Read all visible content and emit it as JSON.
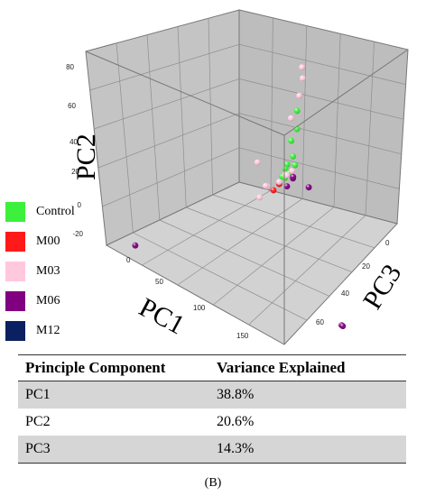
{
  "chart_data": {
    "type": "scatter",
    "title": "",
    "xlabel": "PC1",
    "ylabel": "PC2",
    "zlabel": "PC3",
    "pc1_ticks": [
      "0",
      "50",
      "100",
      "150"
    ],
    "pc2_ticks": [
      "80",
      "60",
      "40",
      "20",
      "0",
      "-20"
    ],
    "pc3_ticks": [
      "0",
      "20",
      "40",
      "60"
    ],
    "pc1_range": [
      0,
      180
    ],
    "pc2_range": [
      -20,
      80
    ],
    "pc3_range": [
      0,
      70
    ],
    "legend_position": "left",
    "series": [
      {
        "name": "Control",
        "color": "#3cf03c",
        "points": [
          [
            120,
            70,
            38
          ],
          [
            116,
            58,
            40
          ],
          [
            112,
            42,
            40
          ],
          [
            110,
            38,
            38
          ],
          [
            108,
            35,
            38
          ],
          [
            114,
            52,
            38
          ],
          [
            105,
            30,
            38
          ],
          [
            104,
            28,
            40
          ],
          [
            112,
            34,
            38
          ],
          [
            118,
            40,
            38
          ]
        ]
      },
      {
        "name": "M00",
        "color": "#ff1a1a",
        "points": [
          [
            100,
            22,
            36
          ],
          [
            102,
            25,
            38
          ]
        ]
      },
      {
        "name": "M03",
        "color": "#ffc8dc",
        "points": [
          [
            125,
            95,
            38
          ],
          [
            118,
            85,
            42
          ],
          [
            128,
            82,
            35
          ],
          [
            110,
            62,
            40
          ],
          [
            90,
            20,
            38
          ],
          [
            92,
            22,
            36
          ],
          [
            98,
            24,
            40
          ],
          [
            108,
            32,
            38
          ],
          [
            76,
            28,
            40
          ],
          [
            86,
            14,
            36
          ],
          [
            106,
            30,
            40
          ],
          [
            115,
            36,
            38
          ]
        ]
      },
      {
        "name": "M06",
        "color": "#800080",
        "points": [
          [
            112,
            30,
            40
          ],
          [
            116,
            33,
            38
          ],
          [
            128,
            30,
            40
          ],
          [
            10,
            -22,
            10
          ],
          [
            215,
            -5,
            12
          ],
          [
            220,
            -3,
            10
          ],
          [
            106,
            24,
            40
          ]
        ]
      },
      {
        "name": "M12",
        "color": "#0a2060",
        "points": []
      }
    ]
  },
  "table": {
    "headers": [
      "Principle Component",
      "Variance Explained"
    ],
    "rows": [
      {
        "component": "PC1",
        "variance": "38.8%"
      },
      {
        "component": "PC2",
        "variance": "20.6%"
      },
      {
        "component": "PC3",
        "variance": "14.3%"
      }
    ]
  },
  "caption": "(B)"
}
